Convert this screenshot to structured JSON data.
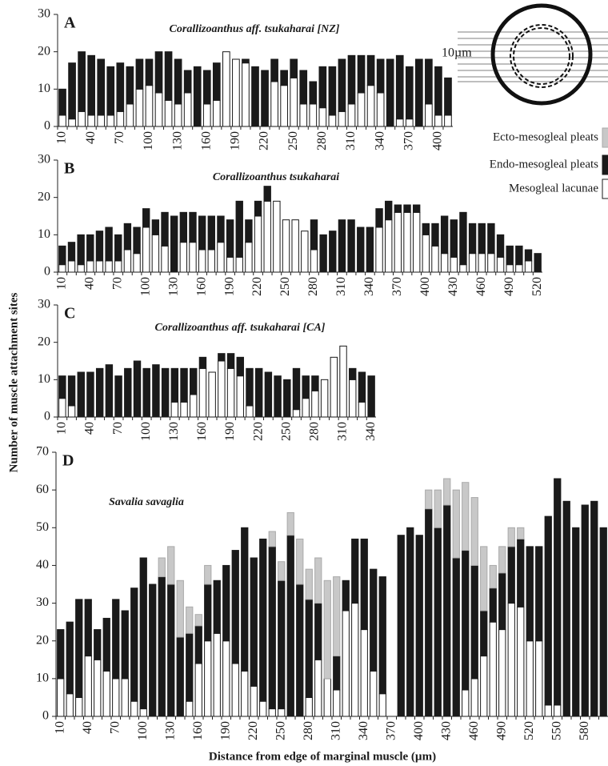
{
  "y_label": "Number of muscle attachment sites",
  "x_label": "Distance from edge of marginal muscle (µm)",
  "diagram": {
    "label": "10µm"
  },
  "chart_data": [
    {
      "type": "bar",
      "stacked": true,
      "letter": "A",
      "title": "Corallizoanthus aff. tsukaharai [NZ]",
      "categories": [
        10,
        null,
        null,
        40,
        null,
        null,
        70,
        null,
        null,
        100,
        null,
        null,
        130,
        null,
        null,
        160,
        null,
        null,
        190,
        null,
        null,
        220,
        null,
        null,
        250,
        null,
        null,
        280,
        null,
        null,
        310,
        null,
        null,
        340,
        null,
        null,
        370,
        null,
        null,
        400,
        null
      ],
      "series": [
        {
          "name": "Mesogleal lacunae",
          "color": "#ffffff",
          "values": [
            3,
            2,
            4,
            3,
            3,
            3,
            4,
            6,
            10,
            11,
            9,
            7,
            6,
            9,
            0,
            6,
            7,
            20,
            18,
            17,
            0,
            0,
            12,
            11,
            13,
            6,
            6,
            5,
            3,
            4,
            6,
            9,
            11,
            9,
            0,
            2,
            2,
            0,
            6,
            3,
            3
          ]
        },
        {
          "name": "Endo-mesogleal pleats",
          "color": "#1a1a1a",
          "values": [
            7,
            15,
            16,
            16,
            15,
            13,
            13,
            10,
            8,
            7,
            11,
            13,
            12,
            6,
            16,
            9,
            10,
            0,
            0,
            1,
            16,
            15,
            6,
            4,
            5,
            9,
            6,
            11,
            13,
            14,
            13,
            10,
            8,
            9,
            18,
            17,
            14,
            18,
            12,
            13,
            10
          ]
        }
      ],
      "ylim": [
        0,
        30
      ],
      "yticks": [
        0,
        10,
        20,
        30
      ]
    },
    {
      "type": "bar",
      "stacked": true,
      "letter": "B",
      "title": "Corallizoanthus tsukaharai",
      "categories": [
        10,
        null,
        null,
        40,
        null,
        null,
        70,
        null,
        null,
        100,
        null,
        null,
        130,
        null,
        null,
        160,
        null,
        null,
        190,
        null,
        null,
        220,
        null,
        null,
        250,
        null,
        null,
        280,
        null,
        null,
        310,
        null,
        null,
        340,
        null,
        null,
        370,
        null,
        null,
        400,
        null,
        null,
        430,
        null,
        null,
        460,
        null,
        null,
        490,
        null,
        null,
        520
      ],
      "series": [
        {
          "name": "Mesogleal lacunae",
          "color": "#ffffff",
          "values": [
            2,
            3,
            2,
            3,
            3,
            3,
            3,
            6,
            5,
            12,
            10,
            7,
            0,
            8,
            8,
            6,
            6,
            8,
            4,
            4,
            8,
            15,
            19,
            19,
            14,
            14,
            11,
            6,
            0,
            0,
            0,
            0,
            0,
            0,
            12,
            14,
            16,
            16,
            16,
            10,
            7,
            5,
            4,
            2,
            5,
            5,
            5,
            4,
            2,
            2,
            3,
            0
          ]
        },
        {
          "name": "Endo-mesogleal pleats",
          "color": "#1a1a1a",
          "values": [
            5,
            5,
            8,
            7,
            8,
            9,
            7,
            7,
            7,
            5,
            4,
            9,
            15,
            8,
            8,
            9,
            9,
            7,
            10,
            15,
            6,
            4,
            4,
            0,
            0,
            0,
            0,
            8,
            10,
            11,
            14,
            14,
            12,
            12,
            5,
            5,
            2,
            2,
            2,
            3,
            6,
            10,
            10,
            14,
            8,
            8,
            8,
            6,
            5,
            5,
            3,
            5
          ]
        }
      ],
      "ylim": [
        0,
        30
      ],
      "yticks": [
        0,
        10,
        20,
        30
      ]
    },
    {
      "type": "bar",
      "stacked": true,
      "letter": "C",
      "title": "Corallizoanthus aff. tsukaharai [CA]",
      "categories": [
        10,
        null,
        null,
        40,
        null,
        null,
        70,
        null,
        null,
        100,
        null,
        null,
        130,
        null,
        null,
        160,
        null,
        null,
        190,
        null,
        null,
        220,
        null,
        null,
        250,
        null,
        null,
        280,
        null,
        null,
        310,
        null,
        null,
        340
      ],
      "series": [
        {
          "name": "Mesogleal lacunae",
          "color": "#ffffff",
          "values": [
            5,
            3,
            0,
            0,
            0,
            0,
            0,
            0,
            0,
            0,
            0,
            0,
            4,
            4,
            6,
            13,
            12,
            15,
            13,
            11,
            3,
            0,
            0,
            0,
            0,
            2,
            5,
            7,
            10,
            16,
            19,
            10,
            4,
            0
          ]
        },
        {
          "name": "Endo-mesogleal pleats",
          "color": "#1a1a1a",
          "values": [
            6,
            8,
            12,
            12,
            13,
            14,
            11,
            13,
            15,
            13,
            14,
            13,
            9,
            9,
            7,
            3,
            0,
            2,
            4,
            5,
            10,
            13,
            12,
            11,
            10,
            11,
            6,
            4,
            0,
            0,
            0,
            3,
            8,
            11
          ]
        }
      ],
      "ylim": [
        0,
        30
      ],
      "yticks": [
        0,
        10,
        20,
        30
      ]
    },
    {
      "type": "bar",
      "stacked": true,
      "letter": "D",
      "title": "Savalia savaglia",
      "categories": [
        10,
        null,
        null,
        40,
        null,
        null,
        70,
        null,
        null,
        100,
        null,
        null,
        130,
        null,
        null,
        160,
        null,
        null,
        190,
        null,
        null,
        220,
        null,
        null,
        250,
        null,
        null,
        280,
        null,
        null,
        310,
        null,
        null,
        340,
        null,
        null,
        370,
        null,
        null,
        400,
        null,
        null,
        430,
        null,
        null,
        460,
        null,
        null,
        490,
        null,
        null,
        520,
        null,
        null,
        550,
        null,
        null,
        580,
        null,
        null
      ],
      "series": [
        {
          "name": "Mesogleal lacunae",
          "color": "#ffffff",
          "values": [
            10,
            6,
            5,
            16,
            15,
            12,
            10,
            10,
            4,
            2,
            0,
            0,
            0,
            0,
            4,
            14,
            20,
            22,
            20,
            14,
            12,
            8,
            4,
            2,
            2,
            0,
            0,
            5,
            15,
            10,
            7,
            28,
            30,
            23,
            12,
            6,
            null,
            0,
            0,
            0,
            0,
            0,
            0,
            0,
            7,
            10,
            16,
            25,
            23,
            30,
            29,
            20,
            20,
            3,
            3,
            0,
            0,
            0,
            0,
            0
          ]
        },
        {
          "name": "Endo-mesogleal pleats",
          "color": "#1a1a1a",
          "values": [
            13,
            19,
            26,
            15,
            8,
            14,
            21,
            18,
            30,
            40,
            35,
            37,
            35,
            21,
            18,
            10,
            15,
            14,
            20,
            30,
            38,
            34,
            43,
            43,
            34,
            48,
            35,
            26,
            15,
            0,
            9,
            8,
            17,
            24,
            27,
            31,
            null,
            48,
            50,
            48,
            55,
            50,
            56,
            42,
            37,
            30,
            12,
            9,
            15,
            15,
            18,
            25,
            25,
            50,
            60,
            57,
            50,
            56,
            57,
            50
          ]
        },
        {
          "name": "Ecto-mesogleal pleats",
          "color": "#c8c8c8",
          "values": [
            0,
            0,
            0,
            0,
            0,
            0,
            0,
            0,
            0,
            0,
            0,
            5,
            10,
            15,
            7,
            3,
            5,
            0,
            0,
            0,
            0,
            0,
            0,
            4,
            5,
            6,
            12,
            8,
            12,
            26,
            21,
            0,
            0,
            0,
            0,
            0,
            null,
            0,
            0,
            0,
            5,
            10,
            7,
            18,
            18,
            18,
            17,
            6,
            7,
            5,
            3,
            0,
            0,
            0,
            0,
            0,
            0,
            0,
            0,
            0
          ]
        }
      ],
      "ylim": [
        0,
        70
      ],
      "yticks": [
        0,
        10,
        20,
        30,
        40,
        50,
        60,
        70
      ]
    }
  ]
}
